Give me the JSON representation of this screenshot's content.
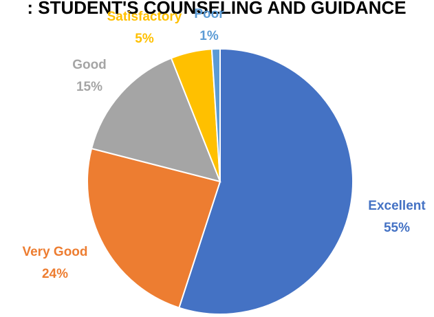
{
  "chart_data": {
    "type": "pie",
    "title": ": STUDENT'S COUNSELING AND GUIDANCE",
    "slices": [
      {
        "label": "Excellent",
        "value": 55,
        "value_label": "55%",
        "color": "#4472C4"
      },
      {
        "label": "Very Good",
        "value": 24,
        "value_label": "24%",
        "color": "#ED7D31"
      },
      {
        "label": "Good",
        "value": 15,
        "value_label": "15%",
        "color": "#A5A5A5"
      },
      {
        "label": "Satisfactory",
        "value": 5,
        "value_label": "5%",
        "color": "#FFC000"
      },
      {
        "label": "Poor",
        "value": 1,
        "value_label": "1%",
        "color": "#5B9BD5"
      }
    ],
    "legend": "none"
  }
}
